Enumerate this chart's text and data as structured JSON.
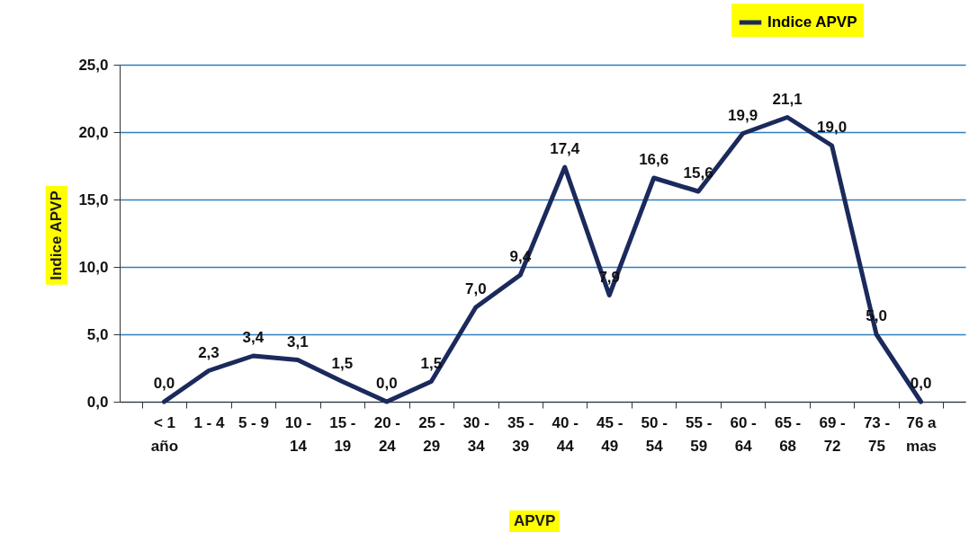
{
  "chart_data": {
    "type": "line",
    "xlabel": "APVP",
    "ylabel": "Indice APVP",
    "categories": [
      "< 1 año",
      "1 - 4",
      "5 - 9",
      "10 - 14",
      "15 - 19",
      "20 - 24",
      "25 - 29",
      "30 - 34",
      "35 - 39",
      "40 - 44",
      "45 - 49",
      "50 - 54",
      "55 - 59",
      "60 - 64",
      "65 - 68",
      "69 - 72",
      "73 - 75",
      "76 a mas"
    ],
    "series": [
      {
        "name": "Indice APVP",
        "color": "#1b2a5c",
        "values": [
          0.0,
          2.3,
          3.4,
          3.1,
          1.5,
          0.0,
          1.5,
          7.0,
          9.4,
          17.4,
          7.9,
          16.6,
          15.6,
          19.9,
          21.1,
          19.0,
          5.0,
          0.0
        ],
        "value_labels": [
          "0,0",
          "2,3",
          "3,4",
          "3,1",
          "1,5",
          "0,0",
          "1,5",
          "7,0",
          "9,4",
          "17,4",
          "7,9",
          "16,6",
          "15,6",
          "19,9",
          "21,1",
          "19,0",
          "5,0",
          "0,0"
        ]
      }
    ],
    "ylim": [
      0,
      25
    ],
    "yticks": [
      {
        "value": 0,
        "label": "0,0"
      },
      {
        "value": 5,
        "label": "5,0"
      },
      {
        "value": 10,
        "label": "10,0"
      },
      {
        "value": 15,
        "label": "15,0"
      },
      {
        "value": 20,
        "label": "20,0"
      },
      {
        "value": 25,
        "label": "25,0"
      }
    ],
    "grid": "y",
    "legend": "top right",
    "marker": "none",
    "line_style": "solid"
  }
}
